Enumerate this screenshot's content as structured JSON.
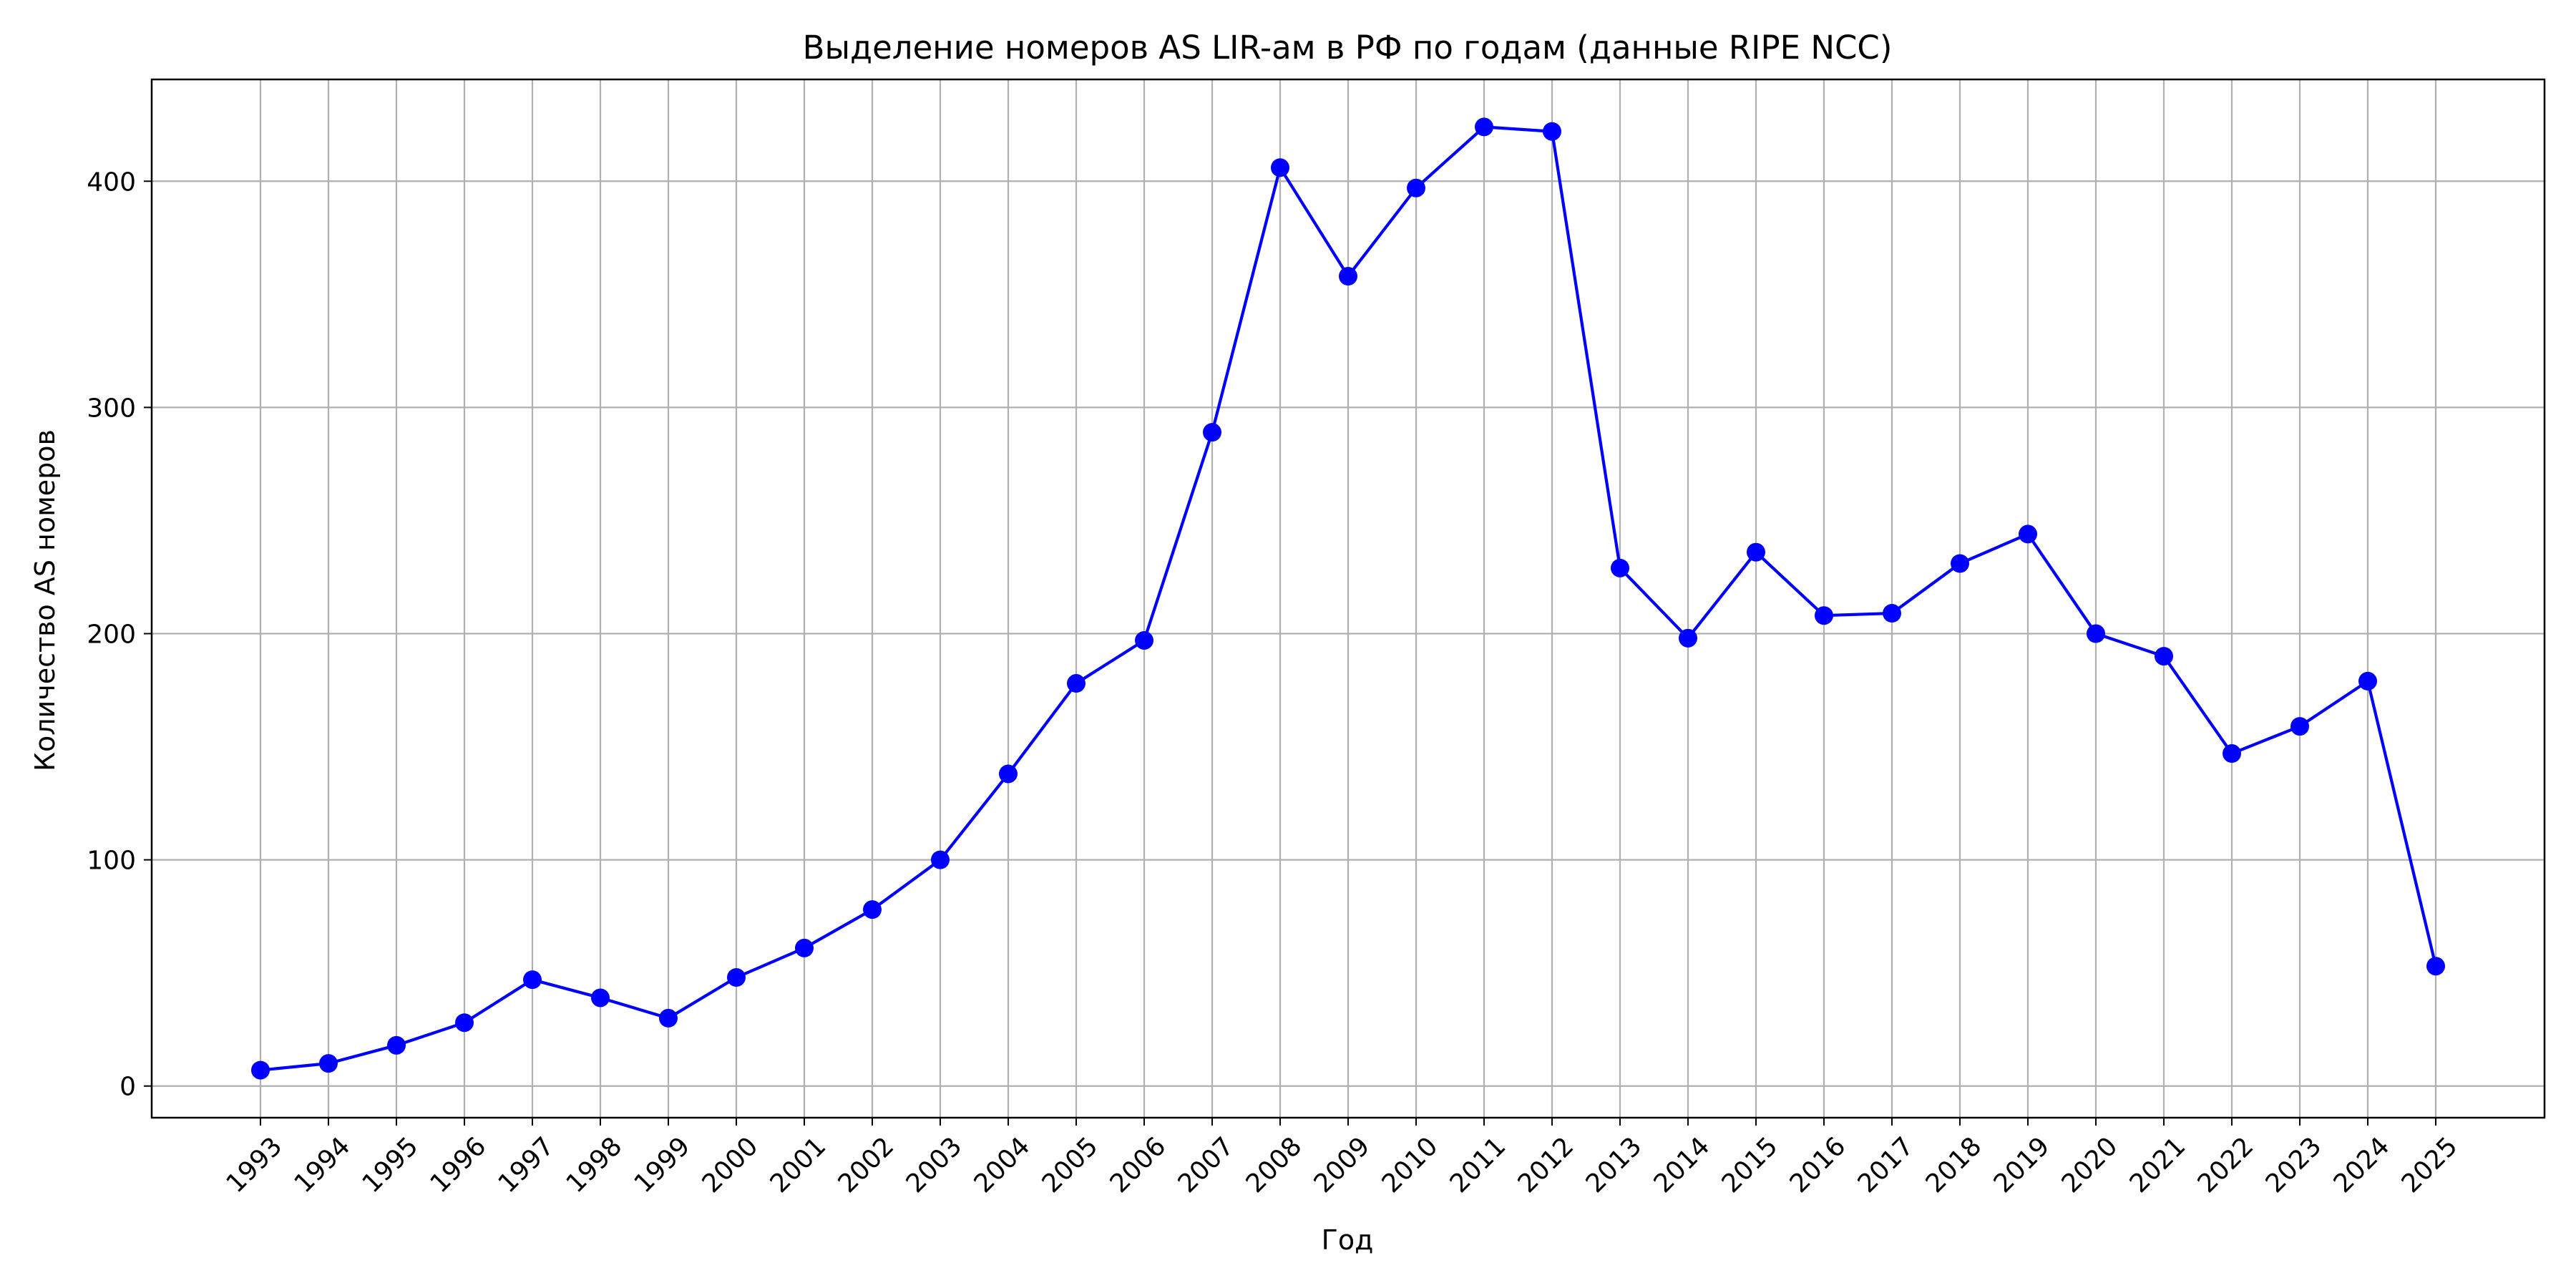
{
  "chart_data": {
    "type": "line",
    "title": "Выделение номеров AS LIR-ам в РФ по годам (данные RIPE NCC)",
    "xlabel": "Год",
    "ylabel": "Количество AS номеров",
    "x": [
      1993,
      1994,
      1995,
      1996,
      1997,
      1998,
      1999,
      2000,
      2001,
      2002,
      2003,
      2004,
      2005,
      2006,
      2007,
      2008,
      2009,
      2010,
      2011,
      2012,
      2013,
      2014,
      2015,
      2016,
      2017,
      2018,
      2019,
      2020,
      2021,
      2022,
      2023,
      2024,
      2025
    ],
    "series": [
      {
        "values": [
          7,
          10,
          18,
          28,
          47,
          39,
          30,
          48,
          61,
          78,
          100,
          138,
          178,
          197,
          289,
          406,
          358,
          397,
          424,
          422,
          229,
          198,
          236,
          208,
          209,
          231,
          244,
          200,
          190,
          147,
          159,
          179,
          53
        ],
        "color": "#0000ff",
        "marker": "circle"
      }
    ],
    "xlim": [
      1991.4,
      2026.6
    ],
    "ylim": [
      -14,
      445
    ],
    "yticks": [
      0,
      100,
      200,
      300,
      400
    ],
    "x_tick_labels": [
      "1993",
      "1994",
      "1995",
      "1996",
      "1997",
      "1998",
      "1999",
      "2000",
      "2001",
      "2002",
      "2003",
      "2004",
      "2005",
      "2006",
      "2007",
      "2008",
      "2009",
      "2010",
      "2011",
      "2012",
      "2013",
      "2014",
      "2015",
      "2016",
      "2017",
      "2018",
      "2019",
      "2020",
      "2021",
      "2022",
      "2023",
      "2024",
      "2025"
    ],
    "x_tick_rotation": 45,
    "grid": true,
    "grid_color": "#b0b0b0",
    "legend": "none"
  }
}
